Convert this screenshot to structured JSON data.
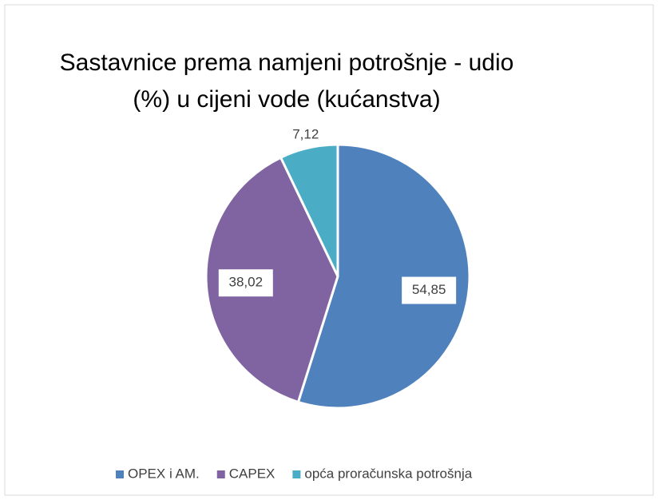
{
  "chart_data": {
    "type": "pie",
    "title": "Sastavnice prema namjeni potrošnje - udio (%) u cijeni vode (kućanstva)",
    "categories": [
      "OPEX i AM.",
      "CAPEX",
      "opća proračunska potrošnja"
    ],
    "values": [
      54.85,
      38.02,
      7.12
    ],
    "value_labels": [
      "54,85",
      "38,02",
      "7,12"
    ],
    "colors": [
      "#4f81bd",
      "#8064a2",
      "#4bacc6"
    ],
    "legend": "bottom"
  }
}
